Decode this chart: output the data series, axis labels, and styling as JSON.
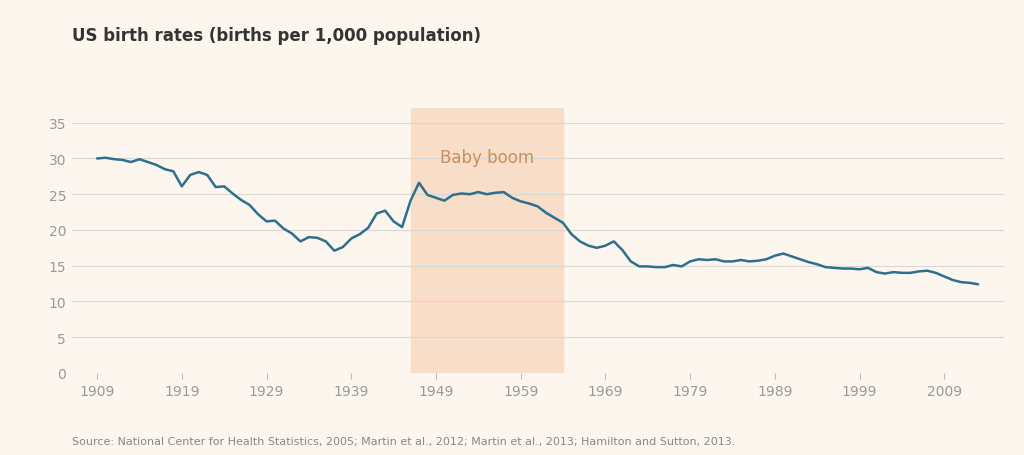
{
  "title": "US birth rates (births per 1,000 population)",
  "source": "Source: National Center for Health Statistics, 2005; Martin et al., 2012; Martin et al., 2013; Hamilton and Sutton, 2013.",
  "background_color": "#fdf6ef",
  "plot_background_color": "#fdf6ef",
  "line_color": "#2e6f8e",
  "line_width": 1.8,
  "baby_boom_start": 1946,
  "baby_boom_end": 1964,
  "baby_boom_color": "#f8ddc8",
  "baby_boom_label": "Baby boom",
  "baby_boom_label_color": "#c89060",
  "ylim": [
    0,
    37
  ],
  "yticks": [
    0,
    5,
    10,
    15,
    20,
    25,
    30,
    35
  ],
  "xticks": [
    1909,
    1919,
    1929,
    1939,
    1949,
    1959,
    1969,
    1979,
    1989,
    1999,
    2009
  ],
  "grid_color": "#d8d8d8",
  "tick_color": "#bbbbbb",
  "label_color": "#999999",
  "title_color": "#333333",
  "source_color": "#888888",
  "years": [
    1909,
    1910,
    1911,
    1912,
    1913,
    1914,
    1915,
    1916,
    1917,
    1918,
    1919,
    1920,
    1921,
    1922,
    1923,
    1924,
    1925,
    1926,
    1927,
    1928,
    1929,
    1930,
    1931,
    1932,
    1933,
    1934,
    1935,
    1936,
    1937,
    1938,
    1939,
    1940,
    1941,
    1942,
    1943,
    1944,
    1945,
    1946,
    1947,
    1948,
    1949,
    1950,
    1951,
    1952,
    1953,
    1954,
    1955,
    1956,
    1957,
    1958,
    1959,
    1960,
    1961,
    1962,
    1963,
    1964,
    1965,
    1966,
    1967,
    1968,
    1969,
    1970,
    1971,
    1972,
    1973,
    1974,
    1975,
    1976,
    1977,
    1978,
    1979,
    1980,
    1981,
    1982,
    1983,
    1984,
    1985,
    1986,
    1987,
    1988,
    1989,
    1990,
    1991,
    1992,
    1993,
    1994,
    1995,
    1996,
    1997,
    1998,
    1999,
    2000,
    2001,
    2002,
    2003,
    2004,
    2005,
    2006,
    2007,
    2008,
    2009,
    2010,
    2011,
    2012,
    2013
  ],
  "rates": [
    30.0,
    30.1,
    29.9,
    29.8,
    29.5,
    29.9,
    29.5,
    29.1,
    28.5,
    28.2,
    26.1,
    27.7,
    28.1,
    27.7,
    26.0,
    26.1,
    25.1,
    24.2,
    23.5,
    22.2,
    21.2,
    21.3,
    20.2,
    19.5,
    18.4,
    19.0,
    18.9,
    18.4,
    17.1,
    17.6,
    18.8,
    19.4,
    20.3,
    22.3,
    22.7,
    21.2,
    20.4,
    24.1,
    26.6,
    24.9,
    24.5,
    24.1,
    24.9,
    25.1,
    25.0,
    25.3,
    25.0,
    25.2,
    25.3,
    24.5,
    24.0,
    23.7,
    23.3,
    22.4,
    21.7,
    21.0,
    19.4,
    18.4,
    17.8,
    17.5,
    17.8,
    18.4,
    17.2,
    15.6,
    14.9,
    14.9,
    14.8,
    14.8,
    15.1,
    14.9,
    15.6,
    15.9,
    15.8,
    15.9,
    15.6,
    15.6,
    15.8,
    15.6,
    15.7,
    15.9,
    16.4,
    16.7,
    16.3,
    15.9,
    15.5,
    15.2,
    14.8,
    14.7,
    14.6,
    14.6,
    14.5,
    14.7,
    14.1,
    13.9,
    14.1,
    14.0,
    14.0,
    14.2,
    14.3,
    14.0,
    13.5,
    13.0,
    12.7,
    12.6,
    12.4
  ],
  "xlim_left": 1906,
  "xlim_right": 2016
}
